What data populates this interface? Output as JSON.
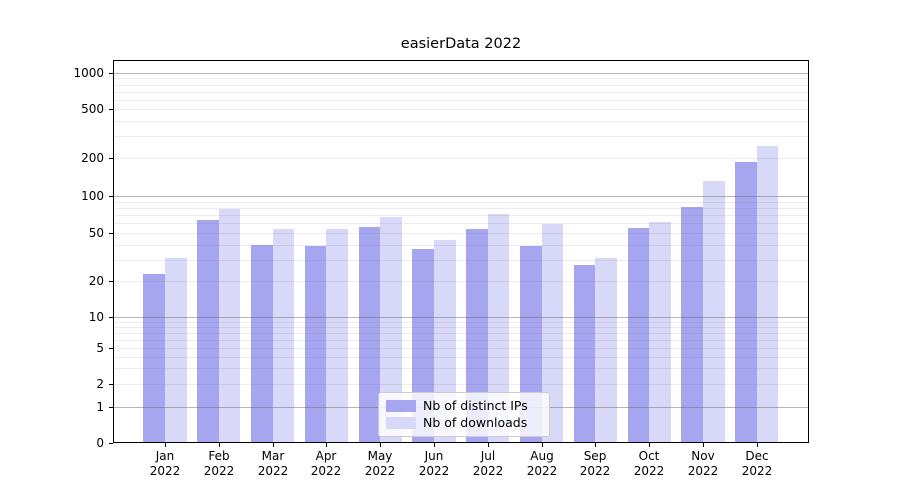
{
  "chart_data": {
    "type": "bar",
    "title": "easierData 2022",
    "categories": [
      "Jan 2022",
      "Feb 2022",
      "Mar 2022",
      "Apr 2022",
      "May 2022",
      "Jun 2022",
      "Jul 2022",
      "Aug 2022",
      "Sep 2022",
      "Oct 2022",
      "Nov 2022",
      "Dec 2022"
    ],
    "series": [
      {
        "name": "Nb of distinct IPs",
        "color": "#a5a5f0",
        "values": [
          23,
          64,
          40,
          39,
          56,
          37,
          54,
          39,
          27,
          55,
          82,
          187
        ]
      },
      {
        "name": "Nb of downloads",
        "color": "#d8d8f8",
        "values": [
          31,
          79,
          54,
          54,
          67,
          44,
          72,
          59,
          31,
          62,
          132,
          250
        ]
      }
    ],
    "xlabel": "",
    "ylabel": "",
    "yscale": "symlog",
    "yticks": [
      0,
      1,
      2,
      5,
      10,
      20,
      50,
      100,
      200,
      500,
      1000
    ],
    "ylim": [
      0,
      1250
    ],
    "grid": true,
    "legend_position": "lower center"
  },
  "colors": {
    "background": "#ffffff",
    "spine": "#000000",
    "bar_distinct_ips": "#a5a5f0",
    "bar_downloads": "#d8d8f8",
    "grid_major": "#6e6e6e",
    "grid_minor": "#e6e6e6",
    "legend_border": "#cccccc"
  }
}
